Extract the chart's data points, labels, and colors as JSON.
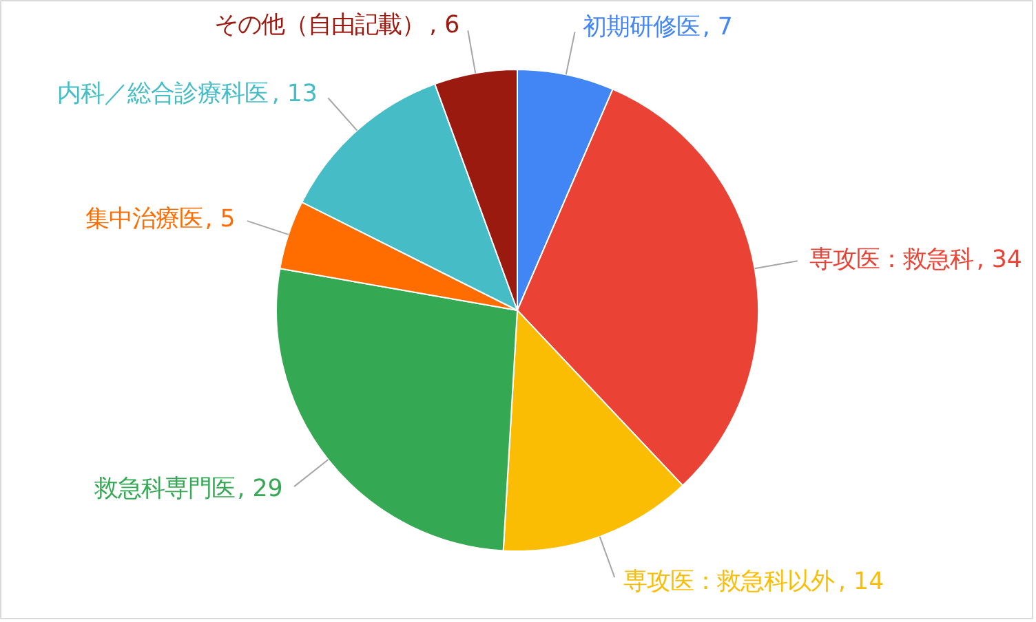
{
  "chart_data": {
    "type": "pie",
    "categories": [
      "初期研修医",
      "専攻医：救急科",
      "専攻医：救急科以外",
      "救急科専門医",
      "集中治療医",
      "内科／総合診療科医",
      "その他（自由記載）"
    ],
    "values": [
      7,
      34,
      14,
      29,
      5,
      13,
      6
    ],
    "colors": [
      "#4285f4",
      "#ea4335",
      "#fbbc04",
      "#34a853",
      "#ff6d01",
      "#46bdc6",
      "#9b1a10"
    ],
    "value_labels": [
      ", 7",
      ", 34",
      ", 14",
      ", 29",
      ", 5",
      ", 13",
      ", 6"
    ],
    "legend": false
  }
}
